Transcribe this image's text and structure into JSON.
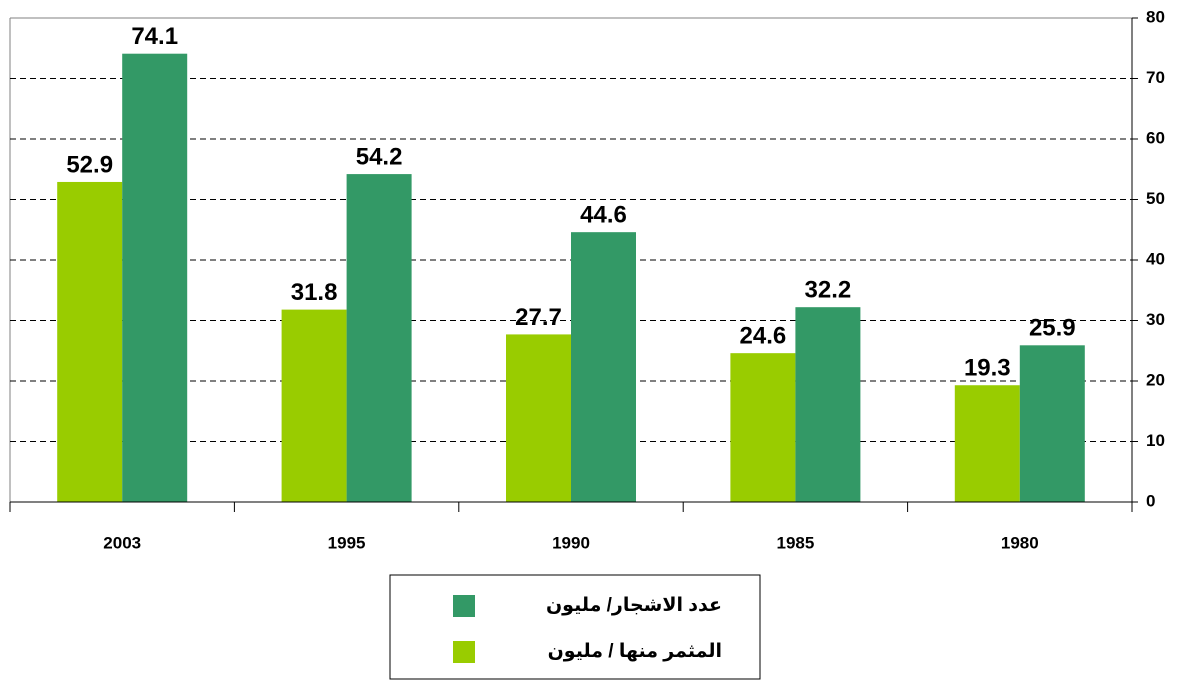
{
  "chart_data": {
    "type": "bar",
    "categories": [
      "2003",
      "1995",
      "1990",
      "1985",
      "1980"
    ],
    "series": [
      {
        "name": "المثمر منها / مليون",
        "color": "#99cc00",
        "values": [
          52.9,
          31.8,
          27.7,
          24.6,
          19.3
        ]
      },
      {
        "name": "عدد الاشجار/ مليون",
        "color": "#339966",
        "values": [
          74.1,
          54.2,
          44.6,
          32.2,
          25.9
        ]
      }
    ],
    "ylim": [
      0,
      80
    ],
    "yticks": [
      0,
      10,
      20,
      30,
      40,
      50,
      60,
      70,
      80
    ],
    "grid": true,
    "y_axis_side": "right",
    "legend": "bottom"
  }
}
